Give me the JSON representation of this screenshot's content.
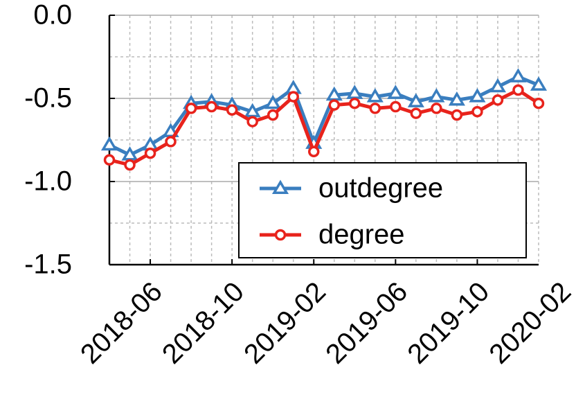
{
  "chart_data": {
    "type": "line",
    "x": [
      "2018-04",
      "2018-05",
      "2018-06",
      "2018-07",
      "2018-08",
      "2018-09",
      "2018-10",
      "2018-11",
      "2018-12",
      "2019-01",
      "2019-02",
      "2019-03",
      "2019-04",
      "2019-05",
      "2019-06",
      "2019-07",
      "2019-08",
      "2019-09",
      "2019-10",
      "2019-11",
      "2019-12",
      "2020-01"
    ],
    "series": [
      {
        "name": "outdegree",
        "color": "#3a7ebf",
        "marker": "triangle",
        "values": [
          -0.78,
          -0.84,
          -0.78,
          -0.7,
          -0.53,
          -0.52,
          -0.54,
          -0.58,
          -0.53,
          -0.44,
          -0.77,
          -0.48,
          -0.47,
          -0.49,
          -0.47,
          -0.52,
          -0.49,
          -0.51,
          -0.49,
          -0.43,
          -0.37,
          -0.42
        ]
      },
      {
        "name": "degree",
        "color": "#e8231c",
        "marker": "circle",
        "values": [
          -0.87,
          -0.9,
          -0.83,
          -0.76,
          -0.56,
          -0.55,
          -0.57,
          -0.64,
          -0.6,
          -0.49,
          -0.82,
          -0.54,
          -0.53,
          -0.56,
          -0.55,
          -0.59,
          -0.56,
          -0.6,
          -0.58,
          -0.51,
          -0.45,
          -0.53
        ]
      }
    ],
    "ylim": [
      -1.5,
      0
    ],
    "yticks": [
      {
        "value": 0,
        "label": "0.0"
      },
      -0.5,
      {
        "value": -1,
        "label": "-1.0"
      },
      -1.5
    ],
    "yticks_minor": [
      -0.25,
      -0.75,
      -1.25
    ],
    "xticks": [
      "2018-06",
      "2018-10",
      "2019-02",
      "2019-06",
      "2019-10",
      "2020-02"
    ],
    "grid": true,
    "legend": "lower right"
  }
}
